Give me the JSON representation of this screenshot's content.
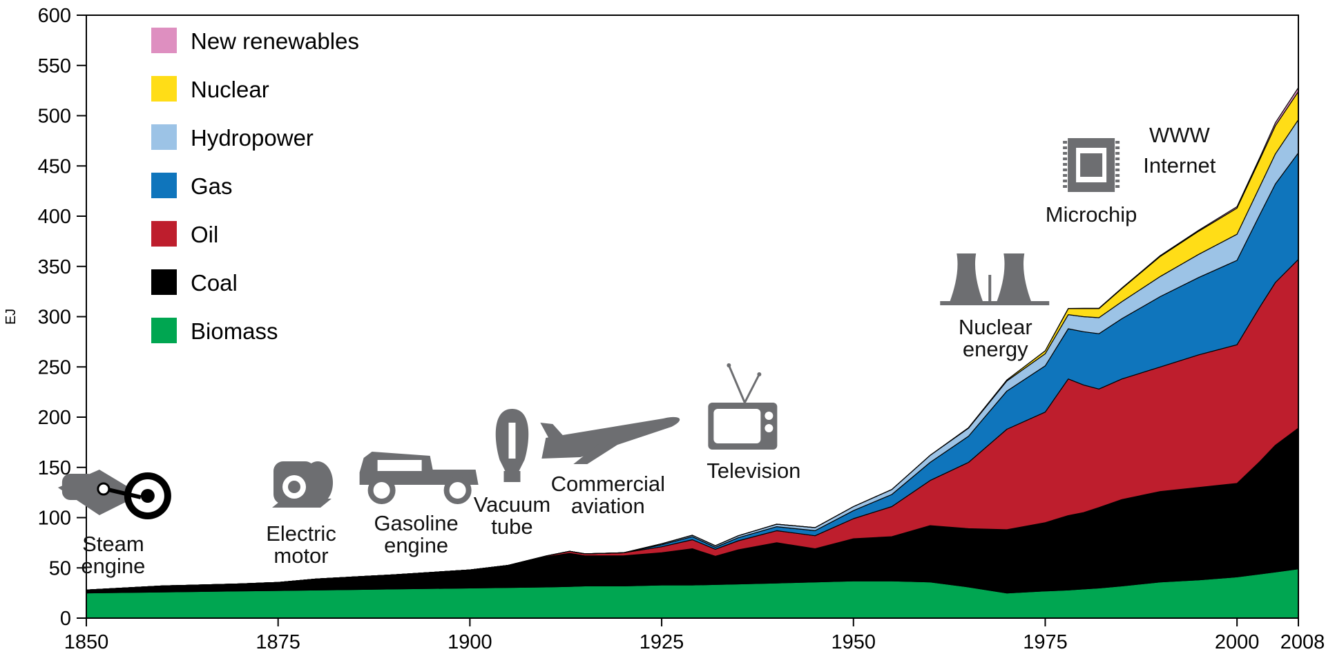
{
  "chart_data": {
    "type": "area",
    "xlabel": "",
    "ylabel": "EJ",
    "xlim": [
      1850,
      2008
    ],
    "ylim": [
      0,
      600
    ],
    "x_ticks": [
      1850,
      1875,
      1900,
      1925,
      1950,
      1975,
      2000,
      2008
    ],
    "y_ticks": [
      0,
      50,
      100,
      150,
      200,
      250,
      300,
      350,
      400,
      450,
      500,
      550,
      600
    ],
    "legend_position": "top-left",
    "x": [
      1850,
      1860,
      1870,
      1875,
      1880,
      1890,
      1900,
      1905,
      1910,
      1913,
      1915,
      1920,
      1925,
      1929,
      1932,
      1935,
      1940,
      1945,
      1950,
      1955,
      1960,
      1965,
      1970,
      1975,
      1978,
      1980,
      1982,
      1985,
      1990,
      1995,
      2000,
      2003,
      2005,
      2008
    ],
    "series": [
      {
        "name": "Biomass",
        "color": "#00a651",
        "values": [
          25,
          26,
          27,
          27.5,
          28,
          29,
          30,
          30.5,
          31,
          31.5,
          32,
          32,
          33,
          33,
          33.5,
          34,
          35,
          36,
          37,
          37,
          36,
          31,
          25,
          27,
          28,
          29,
          30,
          32,
          36,
          38,
          41,
          44,
          46,
          49
        ]
      },
      {
        "name": "Coal",
        "color": "#000000",
        "values": [
          3,
          6,
          7,
          8,
          11,
          14,
          18,
          22,
          30,
          33,
          30,
          30,
          32,
          36,
          28,
          34,
          40,
          33,
          42,
          44,
          56,
          58,
          63,
          68,
          74,
          76,
          80,
          86,
          90,
          92,
          93,
          112,
          126,
          140
        ]
      },
      {
        "name": "Oil",
        "color": "#be1e2d",
        "values": [
          0,
          0,
          0,
          0,
          0,
          0,
          0,
          0,
          1,
          2,
          2,
          3,
          6,
          9,
          7,
          9,
          12,
          13,
          20,
          30,
          45,
          66,
          100,
          110,
          136,
          127,
          118,
          120,
          124,
          132,
          138,
          154,
          162,
          168
        ]
      },
      {
        "name": "Gas",
        "color": "#0f75bc",
        "values": [
          0,
          0,
          0,
          0,
          0,
          0,
          0,
          0,
          0,
          0,
          0,
          0,
          2,
          3,
          2,
          3,
          4,
          5,
          8,
          12,
          18,
          26,
          38,
          46,
          50,
          53,
          55,
          60,
          70,
          77,
          84,
          92,
          98,
          106
        ]
      },
      {
        "name": "Hydropower",
        "color": "#9cc3e6",
        "values": [
          0,
          0,
          0,
          0,
          0,
          0,
          0,
          0,
          0,
          0,
          0,
          0,
          1,
          1.5,
          1.5,
          2,
          2.5,
          3,
          4,
          5,
          7,
          8,
          10,
          12,
          14,
          15,
          16,
          17,
          20,
          23,
          26,
          28,
          30,
          33
        ]
      },
      {
        "name": "Nuclear",
        "color": "#ffdd17",
        "values": [
          0,
          0,
          0,
          0,
          0,
          0,
          0,
          0,
          0,
          0,
          0,
          0,
          0,
          0,
          0,
          0,
          0,
          0,
          0,
          0,
          0,
          0.5,
          1,
          3,
          6,
          8,
          9,
          13,
          20,
          23,
          26,
          27,
          28,
          28
        ]
      },
      {
        "name": "New renewables",
        "color": "#de8fc0",
        "values": [
          0,
          0,
          0,
          0,
          0,
          0,
          0,
          0,
          0,
          0,
          0,
          0,
          0,
          0,
          0,
          0,
          0,
          0,
          0,
          0,
          0,
          0,
          0,
          0,
          0.2,
          0.3,
          0.4,
          0.5,
          0.8,
          1,
          1.5,
          2,
          3,
          4
        ]
      }
    ],
    "annotations": [
      {
        "id": "steam",
        "lines": [
          "Steam",
          "engine"
        ],
        "x": 1853.5,
        "icon": "steam-engine-icon"
      },
      {
        "id": "motor",
        "lines": [
          "Electric",
          "motor"
        ],
        "x": 1878,
        "icon": "electric-motor-icon"
      },
      {
        "id": "gasoline",
        "lines": [
          "Gasoline",
          "engine"
        ],
        "x": 1893,
        "icon": "car-icon"
      },
      {
        "id": "vacuum",
        "lines": [
          "Vacuum",
          "tube"
        ],
        "x": 1905.5,
        "icon": "vacuum-tube-icon"
      },
      {
        "id": "aviation",
        "lines": [
          "Commercial",
          "aviation"
        ],
        "x": 1918,
        "icon": "airplane-icon"
      },
      {
        "id": "tv",
        "lines": [
          "Television"
        ],
        "x": 1937,
        "icon": "television-icon"
      },
      {
        "id": "nuclear",
        "lines": [
          "Nuclear",
          "energy"
        ],
        "x": 1968.5,
        "icon": "cooling-tower-icon"
      },
      {
        "id": "chip",
        "lines": [
          "Microchip"
        ],
        "x": 1981,
        "icon": "microchip-icon"
      },
      {
        "id": "www",
        "lines": [
          "WWW",
          "Internet"
        ],
        "x": 1992.5,
        "icon": ""
      }
    ]
  }
}
